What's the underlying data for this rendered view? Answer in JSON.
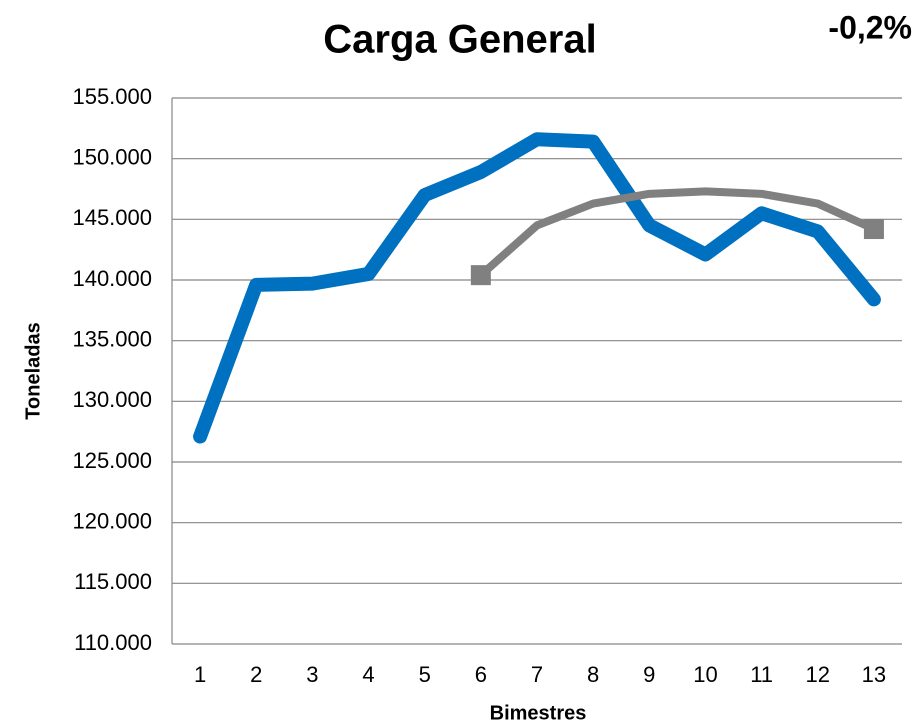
{
  "chart_data": {
    "type": "line",
    "title": "Carga General",
    "annotation": "-0,2%",
    "annotation_color": "#ffc000",
    "x_label": "Bimestres",
    "y_label": "Toneladas",
    "categories": [
      "1",
      "2",
      "3",
      "4",
      "5",
      "6",
      "7",
      "8",
      "9",
      "10",
      "11",
      "12",
      "13"
    ],
    "series": [
      {
        "color": "#0070c0",
        "values": [
          127100,
          139600,
          139700,
          140500,
          147000,
          148900,
          151600,
          151400,
          144500,
          142100,
          145500,
          144000,
          138400
        ]
      },
      {
        "color": "#808080",
        "marker": "square",
        "values": [
          null,
          null,
          null,
          null,
          null,
          140400,
          144500,
          146300,
          147100,
          147300,
          147100,
          146300,
          144200
        ]
      }
    ],
    "ylim": [
      110000,
      155000
    ],
    "yticks": [
      {
        "value": 110000,
        "label": "110.000"
      },
      {
        "value": 115000,
        "label": "115.000"
      },
      {
        "value": 120000,
        "label": "120.000"
      },
      {
        "value": 125000,
        "label": "125.000"
      },
      {
        "value": 130000,
        "label": "130.000"
      },
      {
        "value": 135000,
        "label": "135.000"
      },
      {
        "value": 140000,
        "label": "140.000"
      },
      {
        "value": 145000,
        "label": "145.000"
      },
      {
        "value": 150000,
        "label": "150.000"
      },
      {
        "value": 155000,
        "label": "155.000"
      }
    ],
    "grid": true
  }
}
